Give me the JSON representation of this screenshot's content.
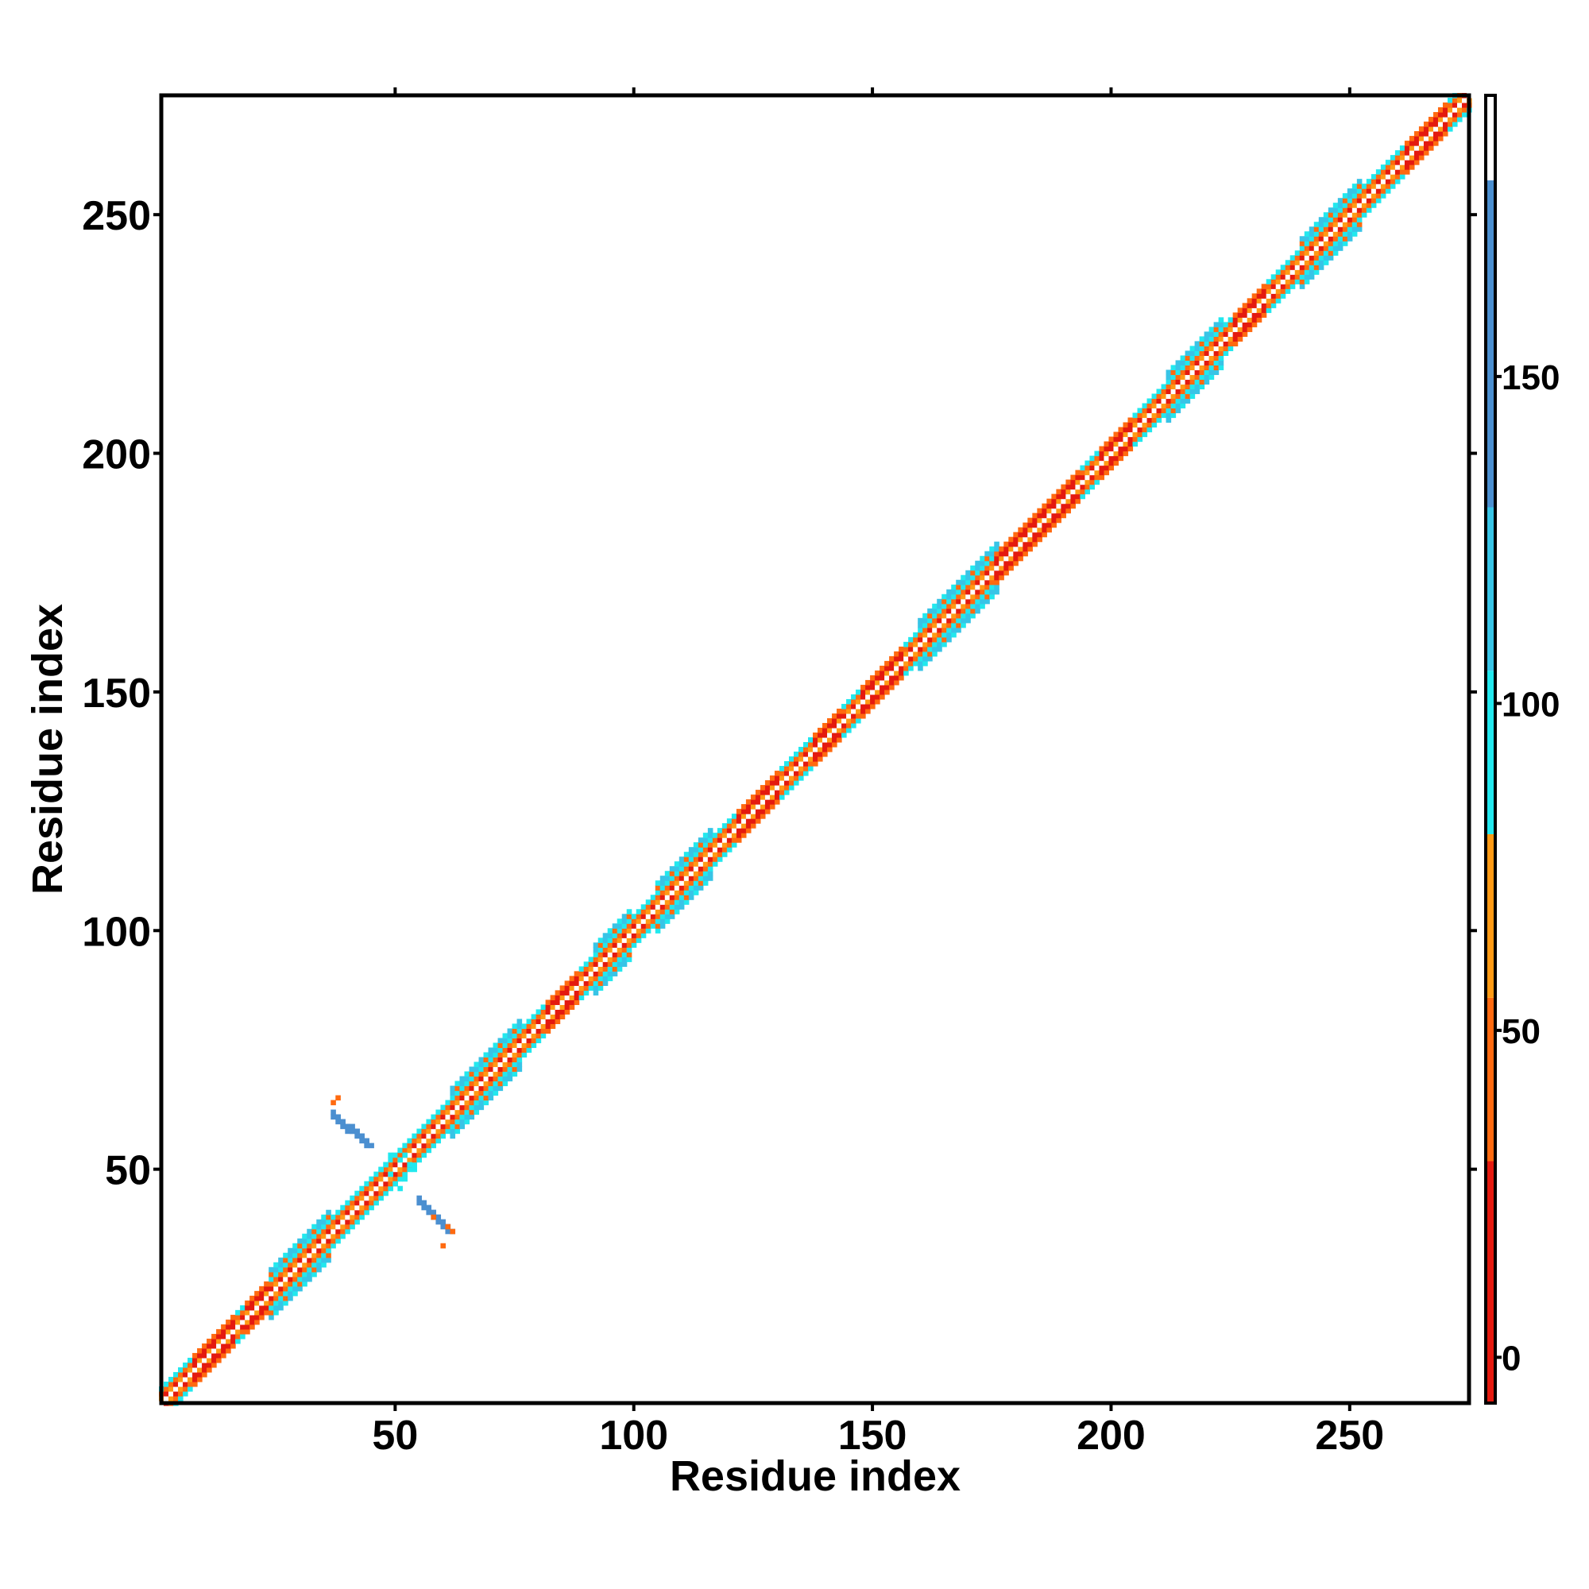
{
  "chart_data": {
    "type": "heatmap",
    "title": "",
    "xlabel": "Residue index",
    "ylabel": "Residue index",
    "xlim": [
      1,
      275
    ],
    "ylim": [
      1,
      275
    ],
    "x_ticks": [
      50,
      100,
      150,
      200,
      250
    ],
    "y_ticks": [
      50,
      100,
      150,
      200,
      250
    ],
    "colorbar": {
      "ticks": [
        0,
        50,
        100,
        150
      ],
      "range": [
        -7,
        193
      ],
      "segments": [
        {
          "from": -7,
          "to": 30,
          "color": "#e41a0f"
        },
        {
          "from": 30,
          "to": 55,
          "color": "#ff6a10"
        },
        {
          "from": 55,
          "to": 80,
          "color": "#ff9a14"
        },
        {
          "from": 80,
          "to": 105,
          "color": "#22e8ee"
        },
        {
          "from": 105,
          "to": 130,
          "color": "#38c4e6"
        },
        {
          "from": 130,
          "to": 180,
          "color": "#4b8fd0"
        },
        {
          "from": 180,
          "to": 193,
          "color": "#ffffff"
        }
      ]
    },
    "diagonal": {
      "from": 1,
      "to": 275,
      "band_half_width": 2
    },
    "helices": [
      [
        8,
        16
      ],
      [
        19,
        23
      ],
      [
        82,
        88
      ],
      [
        122,
        130
      ],
      [
        138,
        143
      ],
      [
        148,
        156
      ],
      [
        176,
        186
      ],
      [
        187,
        193
      ],
      [
        198,
        204
      ],
      [
        226,
        232
      ],
      [
        262,
        270
      ]
    ],
    "sheet_like_regions": [
      [
        24,
        36
      ],
      [
        62,
        76
      ],
      [
        92,
        99
      ],
      [
        105,
        116
      ],
      [
        160,
        176
      ],
      [
        212,
        223
      ],
      [
        240,
        252
      ]
    ],
    "off_diagonal_contacts": [
      {
        "x_from": 37,
        "x_to": 44,
        "y_from": 61,
        "y_to": 55,
        "value": 150
      },
      {
        "x_from": 55,
        "x_to": 61,
        "y_from": 43,
        "y_to": 37,
        "value": 150
      }
    ],
    "colors": {
      "red": "#e41a0f",
      "orange_red": "#ff6a10",
      "orange": "#ff9a14",
      "cyan": "#22e8ee",
      "sky": "#38c4e6",
      "steel_blue": "#4b8fd0"
    }
  }
}
